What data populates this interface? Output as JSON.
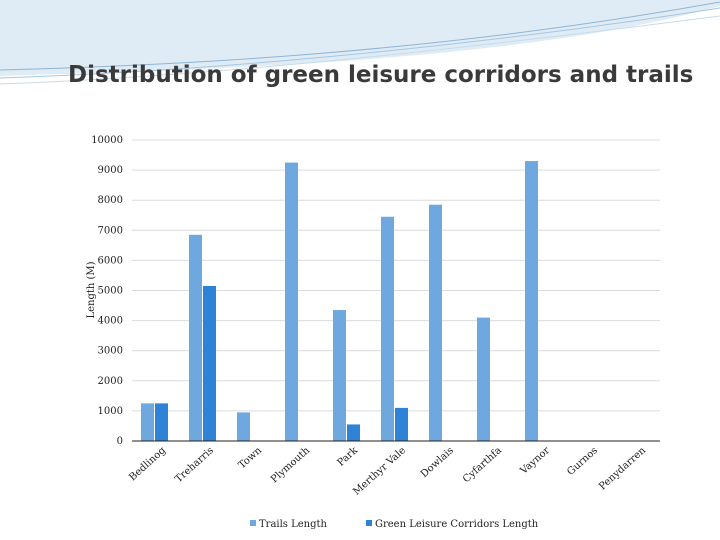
{
  "slide": {
    "title": "Distribution of green leisure corridors and trails"
  },
  "colors": {
    "trails": "#6fa7df",
    "corridors": "#2f83d6",
    "gridline": "#dcdcdc",
    "axis": "#222222",
    "swoosh": "#b9d4e8"
  },
  "chart_data": {
    "type": "bar",
    "title": "",
    "xlabel": "",
    "ylabel": "Length (M)",
    "ylim": [
      0,
      10000
    ],
    "yticks": [
      0,
      1000,
      2000,
      3000,
      4000,
      5000,
      6000,
      7000,
      8000,
      9000,
      10000
    ],
    "grid": true,
    "legend_position": "bottom",
    "categories": [
      "Bedlinog",
      "Treharris",
      "Town",
      "Plymouth",
      "Park",
      "Merthyr Vale",
      "Dowlais",
      "Cyfarthfa",
      "Vaynor",
      "Gurnos",
      "Penydarren"
    ],
    "series": [
      {
        "name": "Trails Length",
        "values": [
          1250,
          6850,
          950,
          9250,
          4350,
          7450,
          7850,
          4100,
          9300,
          0,
          0
        ]
      },
      {
        "name": "Green Leisure Corridors Length",
        "values": [
          1250,
          5150,
          0,
          0,
          550,
          1100,
          0,
          0,
          0,
          0,
          0
        ]
      }
    ]
  }
}
